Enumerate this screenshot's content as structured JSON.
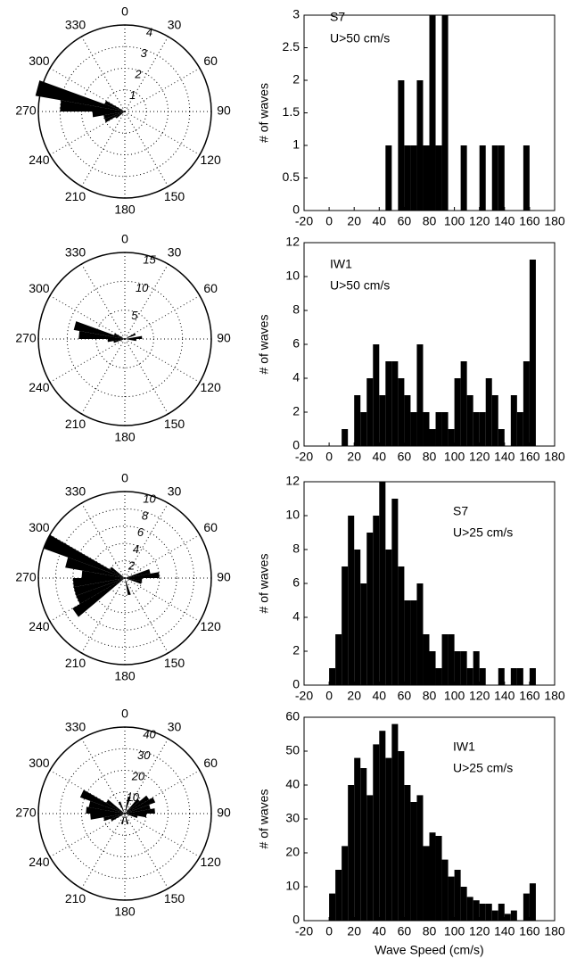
{
  "chart_data": [
    {
      "type": "rose",
      "angle_labels": [
        0,
        30,
        60,
        90,
        120,
        150,
        180,
        210,
        240,
        270,
        300,
        330
      ],
      "rlim": [
        0,
        4
      ],
      "rticks": [
        1,
        2,
        3,
        4
      ],
      "theta": [
        235,
        245,
        255,
        265,
        275,
        285,
        295
      ],
      "values": [
        0.5,
        1,
        1,
        1.5,
        3,
        4.2,
        1
      ],
      "color": "#000000"
    },
    {
      "type": "histogram",
      "annotations": [
        "S7",
        "U>50 cm/s"
      ],
      "ylabel": "# of waves",
      "bins": [
        0,
        5,
        10,
        15,
        20,
        25,
        30,
        35,
        40,
        45,
        50,
        55,
        60,
        65,
        70,
        75,
        80,
        85,
        90,
        95,
        100,
        105,
        110,
        115,
        120,
        125,
        130,
        135,
        140,
        145,
        150,
        155,
        160,
        165
      ],
      "values": [
        0,
        0,
        0,
        0,
        0,
        0,
        0,
        0,
        0,
        1,
        0,
        2,
        1,
        1,
        2,
        1,
        3,
        1,
        3,
        0,
        0,
        1,
        0,
        0,
        1,
        0,
        1,
        1,
        0,
        0,
        0,
        1,
        0
      ],
      "color": "#000000",
      "xlim": [
        -20,
        180
      ],
      "xticks": [
        -20,
        0,
        20,
        40,
        60,
        80,
        100,
        120,
        140,
        160,
        180
      ],
      "ylim": [
        0,
        3
      ],
      "yticks": [
        0,
        0.5,
        1,
        1.5,
        2,
        2.5,
        3
      ]
    },
    {
      "type": "rose",
      "angle_labels": [
        0,
        30,
        60,
        90,
        120,
        150,
        180,
        210,
        240,
        270,
        300,
        330
      ],
      "rlim": [
        0,
        15
      ],
      "rticks": [
        5,
        10,
        15
      ],
      "theta": [
        65,
        85,
        95,
        255,
        265,
        275,
        285,
        295
      ],
      "values": [
        2,
        3,
        2,
        2,
        3,
        8,
        9,
        2
      ],
      "color": "#000000"
    },
    {
      "type": "histogram",
      "annotations": [
        "IW1",
        "U>50 cm/s"
      ],
      "ylabel": "# of waves",
      "bins": [
        0,
        5,
        10,
        15,
        20,
        25,
        30,
        35,
        40,
        45,
        50,
        55,
        60,
        65,
        70,
        75,
        80,
        85,
        90,
        95,
        100,
        105,
        110,
        115,
        120,
        125,
        130,
        135,
        140,
        145,
        150,
        155,
        160,
        165
      ],
      "values": [
        0,
        0,
        1,
        0,
        3,
        2,
        4,
        6,
        3,
        5,
        5,
        4,
        3,
        2,
        6,
        2,
        1,
        2,
        2,
        1,
        4,
        5,
        3,
        2,
        2,
        4,
        3,
        1,
        0,
        3,
        2,
        5,
        11
      ],
      "color": "#000000",
      "xlim": [
        -20,
        180
      ],
      "xticks": [
        -20,
        0,
        20,
        40,
        60,
        80,
        100,
        120,
        140,
        160,
        180
      ],
      "ylim": [
        0,
        12
      ],
      "yticks": [
        0,
        2,
        4,
        6,
        8,
        10,
        12
      ]
    },
    {
      "type": "rose",
      "angle_labels": [
        0,
        30,
        60,
        90,
        120,
        150,
        180,
        210,
        240,
        270,
        300,
        330
      ],
      "rlim": [
        0,
        10
      ],
      "rticks": [
        2,
        4,
        6,
        8,
        10
      ],
      "theta": [
        75,
        85,
        95,
        105,
        165,
        235,
        245,
        255,
        265,
        275,
        285,
        295,
        305
      ],
      "values": [
        3,
        4,
        2,
        2,
        2,
        7,
        6,
        6,
        6,
        5,
        7,
        10,
        2
      ],
      "color": "#000000"
    },
    {
      "type": "histogram",
      "annotations": [
        "S7",
        "U>25 cm/s"
      ],
      "ylabel": "# of waves",
      "bins": [
        0,
        5,
        10,
        15,
        20,
        25,
        30,
        35,
        40,
        45,
        50,
        55,
        60,
        65,
        70,
        75,
        80,
        85,
        90,
        95,
        100,
        105,
        110,
        115,
        120,
        125,
        130,
        135,
        140,
        145,
        150,
        155,
        160,
        165
      ],
      "values": [
        1,
        3,
        7,
        10,
        8,
        6,
        9,
        10,
        12,
        8,
        11,
        7,
        5,
        5,
        6,
        3,
        2,
        1,
        3,
        3,
        2,
        2,
        1,
        2,
        1,
        0,
        0,
        1,
        0,
        1,
        1,
        0,
        1
      ],
      "color": "#000000",
      "xlim": [
        -20,
        180
      ],
      "xticks": [
        -20,
        0,
        20,
        40,
        60,
        80,
        100,
        120,
        140,
        160,
        180
      ],
      "ylim": [
        0,
        12
      ],
      "yticks": [
        0,
        2,
        4,
        6,
        8,
        10,
        12
      ]
    },
    {
      "type": "rose",
      "angle_labels": [
        0,
        30,
        60,
        90,
        120,
        150,
        180,
        210,
        240,
        270,
        300,
        330
      ],
      "rlim": [
        0,
        40
      ],
      "rticks": [
        10,
        20,
        30,
        40
      ],
      "theta": [
        15,
        45,
        55,
        65,
        75,
        85,
        95,
        105,
        165,
        195,
        245,
        255,
        265,
        275,
        285,
        295,
        305,
        335
      ],
      "values": [
        8,
        9,
        13,
        15,
        12,
        14,
        10,
        6,
        5,
        5,
        7,
        10,
        16,
        18,
        17,
        22,
        10,
        6
      ],
      "color": "#000000"
    },
    {
      "type": "histogram",
      "annotations": [
        "IW1",
        "U>25 cm/s"
      ],
      "ylabel": "# of waves",
      "xlabel": "Wave Speed (cm/s)",
      "bins": [
        0,
        5,
        10,
        15,
        20,
        25,
        30,
        35,
        40,
        45,
        50,
        55,
        60,
        65,
        70,
        75,
        80,
        85,
        90,
        95,
        100,
        105,
        110,
        115,
        120,
        125,
        130,
        135,
        140,
        145,
        150,
        155,
        160,
        165
      ],
      "values": [
        8,
        15,
        22,
        40,
        48,
        45,
        37,
        52,
        56,
        48,
        58,
        50,
        40,
        35,
        37,
        22,
        26,
        25,
        18,
        13,
        15,
        10,
        7,
        6,
        5,
        5,
        3,
        5,
        2,
        3,
        0,
        8,
        11
      ],
      "color": "#000000",
      "xlim": [
        -20,
        180
      ],
      "xticks": [
        -20,
        0,
        20,
        40,
        60,
        80,
        100,
        120,
        140,
        160,
        180
      ],
      "ylim": [
        0,
        60
      ],
      "yticks": [
        0,
        10,
        20,
        30,
        40,
        50,
        60
      ]
    }
  ]
}
